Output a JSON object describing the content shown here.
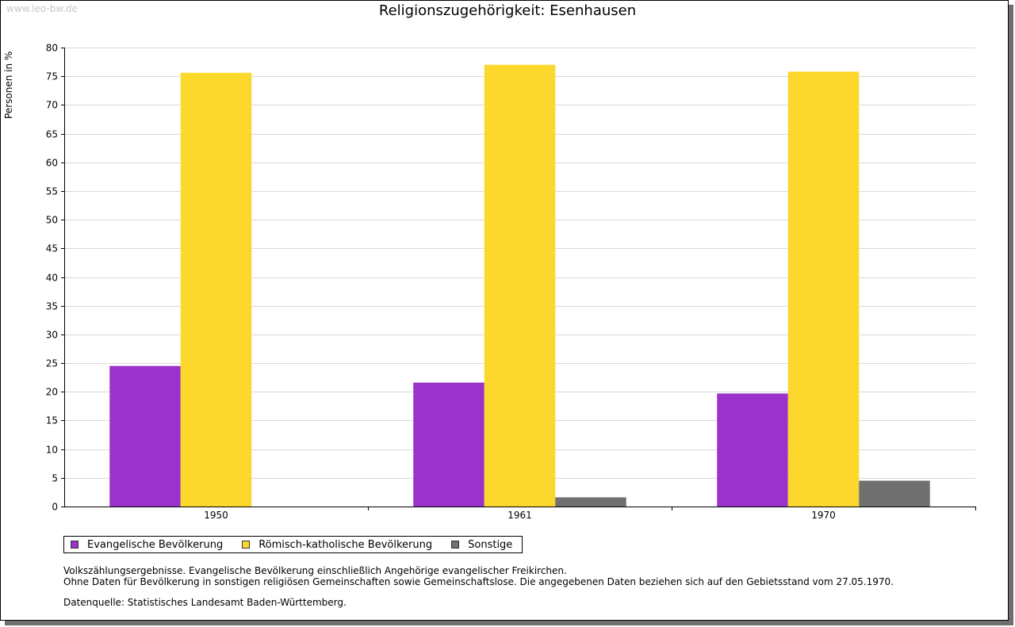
{
  "watermark": "www.leo-bw.de",
  "notes": {
    "line1": "Volkszählungsergebnisse. Evangelische Bevölkerung einschließlich Angehörige evangelischer Freikirchen.",
    "line2": "Ohne Daten für Bevölkerung in sonstigen religiösen Gemeinschaften sowie Gemeinschaftslose. Die angegebenen Daten beziehen sich auf den Gebietsstand vom 27.05.1970.",
    "source": "Datenquelle: Statistisches Landesamt Baden-Württemberg."
  },
  "chart_data": {
    "type": "bar",
    "title": "Religionszugehörigkeit: Esenhausen",
    "xlabel": "",
    "ylabel": "Personen in %",
    "ylim": [
      0,
      80
    ],
    "yticks": [
      0,
      5,
      10,
      15,
      20,
      25,
      30,
      35,
      40,
      45,
      50,
      55,
      60,
      65,
      70,
      75,
      80
    ],
    "grid": true,
    "legend_position": "bottom-left",
    "categories": [
      "1950",
      "1961",
      "1970"
    ],
    "series": [
      {
        "name": "Evangelische Bevölkerung",
        "color": "#9933cc",
        "values": [
          24.5,
          21.6,
          19.7
        ]
      },
      {
        "name": "Römisch-katholische Bevölkerung",
        "color": "#fcd72c",
        "values": [
          75.6,
          77.0,
          75.8
        ]
      },
      {
        "name": "Sonstige",
        "color": "#707070",
        "values": [
          0,
          1.6,
          4.5
        ]
      }
    ]
  }
}
